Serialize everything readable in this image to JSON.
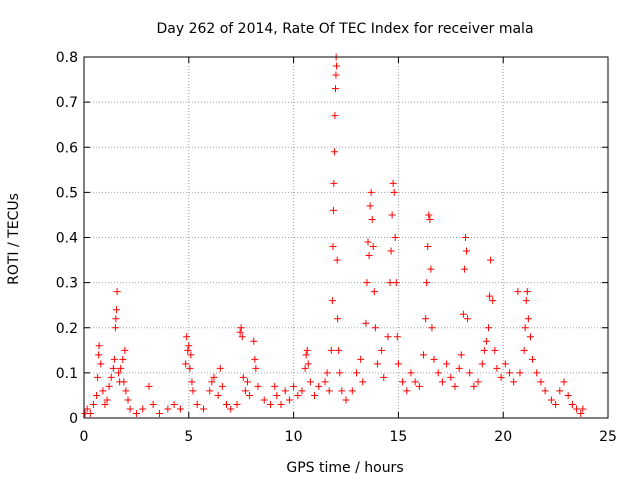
{
  "chart_data": {
    "type": "scatter",
    "title": "Day 262 of 2014, Rate Of TEC Index for receiver mala",
    "xlabel": "GPS time / hours",
    "ylabel": "ROTI / TECUs",
    "xlim": [
      0,
      25
    ],
    "ylim": [
      0,
      0.8
    ],
    "x_ticks": [
      0,
      5,
      10,
      15,
      20,
      25
    ],
    "y_ticks": [
      0,
      0.1,
      0.2,
      0.3,
      0.4,
      0.5,
      0.6,
      0.7,
      0.8
    ],
    "x_tick_labels": [
      "0",
      "5",
      "10",
      "15",
      "20",
      "25"
    ],
    "y_tick_labels": [
      "0",
      "0.1",
      "0.2",
      "0.3",
      "0.4",
      "0.5",
      "0.6",
      "0.7",
      "0.8"
    ],
    "grid": true,
    "marker": "+",
    "color": "#ff0000",
    "series": [
      {
        "name": "ROTI",
        "points": [
          [
            0.05,
            0.01
          ],
          [
            0.15,
            0.02
          ],
          [
            0.3,
            0.01
          ],
          [
            0.45,
            0.03
          ],
          [
            0.6,
            0.05
          ],
          [
            0.65,
            0.09
          ],
          [
            0.7,
            0.14
          ],
          [
            0.72,
            0.16
          ],
          [
            0.8,
            0.12
          ],
          [
            0.9,
            0.06
          ],
          [
            1.0,
            0.03
          ],
          [
            1.1,
            0.04
          ],
          [
            1.2,
            0.07
          ],
          [
            1.3,
            0.09
          ],
          [
            1.4,
            0.11
          ],
          [
            1.45,
            0.13
          ],
          [
            1.5,
            0.2
          ],
          [
            1.52,
            0.22
          ],
          [
            1.55,
            0.24
          ],
          [
            1.58,
            0.28
          ],
          [
            1.65,
            0.1
          ],
          [
            1.7,
            0.08
          ],
          [
            1.75,
            0.11
          ],
          [
            1.85,
            0.13
          ],
          [
            1.9,
            0.08
          ],
          [
            1.95,
            0.15
          ],
          [
            2.0,
            0.06
          ],
          [
            2.1,
            0.04
          ],
          [
            2.2,
            0.02
          ],
          [
            2.5,
            0.01
          ],
          [
            2.8,
            0.02
          ],
          [
            3.1,
            0.07
          ],
          [
            3.3,
            0.03
          ],
          [
            3.6,
            0.01
          ],
          [
            4.0,
            0.02
          ],
          [
            4.3,
            0.03
          ],
          [
            4.6,
            0.02
          ],
          [
            4.85,
            0.12
          ],
          [
            4.9,
            0.18
          ],
          [
            4.95,
            0.15
          ],
          [
            5.0,
            0.16
          ],
          [
            5.05,
            0.11
          ],
          [
            5.1,
            0.14
          ],
          [
            5.15,
            0.08
          ],
          [
            5.2,
            0.06
          ],
          [
            5.4,
            0.03
          ],
          [
            5.7,
            0.02
          ],
          [
            6.0,
            0.06
          ],
          [
            6.1,
            0.08
          ],
          [
            6.2,
            0.09
          ],
          [
            6.4,
            0.05
          ],
          [
            6.5,
            0.11
          ],
          [
            6.6,
            0.07
          ],
          [
            6.8,
            0.03
          ],
          [
            7.0,
            0.02
          ],
          [
            7.3,
            0.03
          ],
          [
            7.45,
            0.19
          ],
          [
            7.5,
            0.2
          ],
          [
            7.55,
            0.18
          ],
          [
            7.6,
            0.09
          ],
          [
            7.7,
            0.06
          ],
          [
            7.8,
            0.08
          ],
          [
            7.9,
            0.05
          ],
          [
            8.1,
            0.17
          ],
          [
            8.15,
            0.13
          ],
          [
            8.2,
            0.11
          ],
          [
            8.3,
            0.07
          ],
          [
            8.6,
            0.04
          ],
          [
            8.9,
            0.03
          ],
          [
            9.1,
            0.07
          ],
          [
            9.2,
            0.05
          ],
          [
            9.4,
            0.03
          ],
          [
            9.6,
            0.06
          ],
          [
            9.8,
            0.04
          ],
          [
            10.0,
            0.07
          ],
          [
            10.2,
            0.05
          ],
          [
            10.4,
            0.06
          ],
          [
            10.55,
            0.11
          ],
          [
            10.6,
            0.14
          ],
          [
            10.65,
            0.15
          ],
          [
            10.7,
            0.12
          ],
          [
            10.8,
            0.08
          ],
          [
            11.0,
            0.05
          ],
          [
            11.2,
            0.07
          ],
          [
            11.5,
            0.08
          ],
          [
            11.6,
            0.1
          ],
          [
            11.7,
            0.06
          ],
          [
            11.8,
            0.15
          ],
          [
            11.85,
            0.26
          ],
          [
            11.88,
            0.38
          ],
          [
            11.9,
            0.46
          ],
          [
            11.92,
            0.52
          ],
          [
            11.95,
            0.59
          ],
          [
            11.97,
            0.67
          ],
          [
            12.0,
            0.73
          ],
          [
            12.02,
            0.76
          ],
          [
            12.03,
            0.8
          ],
          [
            12.05,
            0.78
          ],
          [
            12.08,
            0.35
          ],
          [
            12.1,
            0.22
          ],
          [
            12.15,
            0.15
          ],
          [
            12.2,
            0.1
          ],
          [
            12.3,
            0.06
          ],
          [
            12.5,
            0.04
          ],
          [
            12.8,
            0.06
          ],
          [
            13.0,
            0.1
          ],
          [
            13.2,
            0.13
          ],
          [
            13.3,
            0.08
          ],
          [
            13.45,
            0.21
          ],
          [
            13.5,
            0.3
          ],
          [
            13.55,
            0.39
          ],
          [
            13.6,
            0.36
          ],
          [
            13.65,
            0.47
          ],
          [
            13.7,
            0.5
          ],
          [
            13.75,
            0.44
          ],
          [
            13.8,
            0.38
          ],
          [
            13.85,
            0.28
          ],
          [
            13.9,
            0.2
          ],
          [
            14.0,
            0.12
          ],
          [
            14.2,
            0.15
          ],
          [
            14.3,
            0.09
          ],
          [
            14.5,
            0.18
          ],
          [
            14.6,
            0.3
          ],
          [
            14.65,
            0.37
          ],
          [
            14.7,
            0.45
          ],
          [
            14.75,
            0.52
          ],
          [
            14.8,
            0.5
          ],
          [
            14.85,
            0.4
          ],
          [
            14.9,
            0.3
          ],
          [
            14.95,
            0.18
          ],
          [
            15.0,
            0.12
          ],
          [
            15.2,
            0.08
          ],
          [
            15.4,
            0.06
          ],
          [
            15.6,
            0.1
          ],
          [
            15.8,
            0.08
          ],
          [
            16.0,
            0.07
          ],
          [
            16.2,
            0.14
          ],
          [
            16.3,
            0.22
          ],
          [
            16.35,
            0.3
          ],
          [
            16.4,
            0.38
          ],
          [
            16.45,
            0.45
          ],
          [
            16.5,
            0.44
          ],
          [
            16.55,
            0.33
          ],
          [
            16.6,
            0.2
          ],
          [
            16.7,
            0.13
          ],
          [
            16.9,
            0.1
          ],
          [
            17.1,
            0.08
          ],
          [
            17.3,
            0.12
          ],
          [
            17.5,
            0.09
          ],
          [
            17.7,
            0.07
          ],
          [
            17.9,
            0.11
          ],
          [
            18.0,
            0.14
          ],
          [
            18.1,
            0.23
          ],
          [
            18.15,
            0.33
          ],
          [
            18.2,
            0.4
          ],
          [
            18.25,
            0.37
          ],
          [
            18.3,
            0.22
          ],
          [
            18.4,
            0.1
          ],
          [
            18.6,
            0.07
          ],
          [
            18.8,
            0.08
          ],
          [
            19.0,
            0.12
          ],
          [
            19.1,
            0.15
          ],
          [
            19.2,
            0.17
          ],
          [
            19.3,
            0.2
          ],
          [
            19.35,
            0.27
          ],
          [
            19.4,
            0.35
          ],
          [
            19.5,
            0.26
          ],
          [
            19.6,
            0.15
          ],
          [
            19.7,
            0.11
          ],
          [
            19.9,
            0.09
          ],
          [
            20.1,
            0.12
          ],
          [
            20.3,
            0.1
          ],
          [
            20.5,
            0.08
          ],
          [
            20.7,
            0.28
          ],
          [
            20.8,
            0.1
          ],
          [
            21.0,
            0.15
          ],
          [
            21.05,
            0.2
          ],
          [
            21.1,
            0.26
          ],
          [
            21.15,
            0.28
          ],
          [
            21.2,
            0.22
          ],
          [
            21.3,
            0.18
          ],
          [
            21.4,
            0.13
          ],
          [
            21.6,
            0.1
          ],
          [
            21.8,
            0.08
          ],
          [
            22.0,
            0.06
          ],
          [
            22.3,
            0.04
          ],
          [
            22.5,
            0.03
          ],
          [
            22.7,
            0.06
          ],
          [
            22.9,
            0.08
          ],
          [
            23.1,
            0.05
          ],
          [
            23.3,
            0.03
          ],
          [
            23.5,
            0.02
          ],
          [
            23.7,
            0.01
          ],
          [
            23.8,
            0.02
          ]
        ]
      }
    ]
  }
}
